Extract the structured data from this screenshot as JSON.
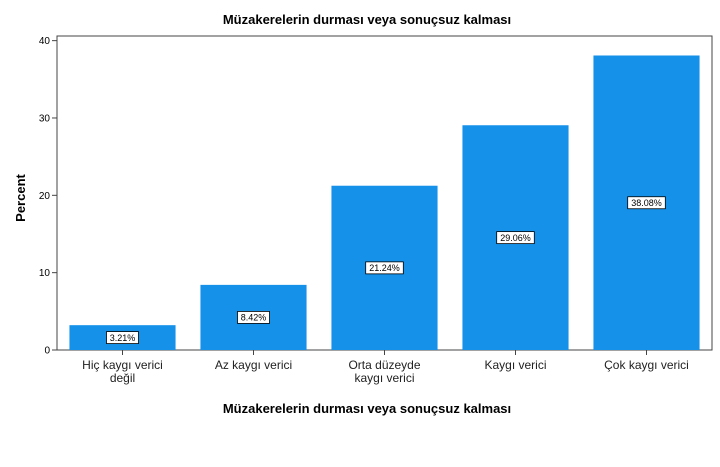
{
  "chart_data": {
    "type": "bar",
    "title": "Müzakerelerin durması veya sonuçsuz kalması",
    "xlabel": "Müzakerelerin durması veya sonuçsuz kalması",
    "ylabel": "Percent",
    "categories": [
      [
        "Hiç kaygı verici",
        "değil"
      ],
      [
        "Az kaygı verici"
      ],
      [
        "Orta düzeyde",
        "kaygı verici"
      ],
      [
        "Kaygı verici"
      ],
      [
        "Çok kaygı verici"
      ]
    ],
    "values": [
      3.21,
      8.42,
      21.24,
      29.06,
      38.08
    ],
    "data_labels": [
      "3.21%",
      "8.42%",
      "21.24%",
      "29.06%",
      "38.08%"
    ],
    "yticks": [
      0,
      10,
      20,
      30,
      40
    ],
    "ylim": [
      0,
      40.6
    ],
    "bar_color": "#1591ea",
    "grid": false
  }
}
